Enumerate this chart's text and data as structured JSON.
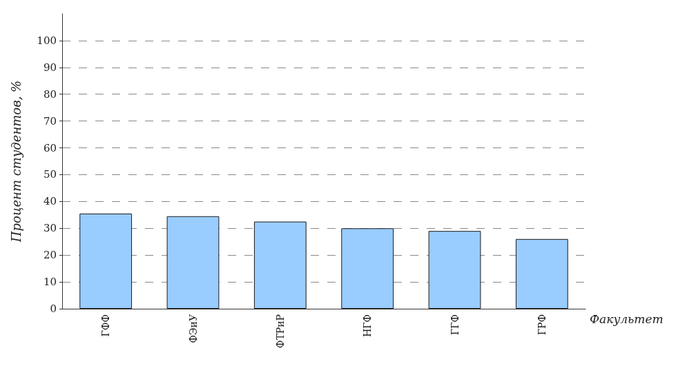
{
  "chart_data": {
    "type": "bar",
    "xlabel": "Факультет",
    "ylabel": "Процент студентов, %",
    "categories": [
      "ГФФ",
      "ФЭиУ",
      "ФТРиР",
      "НГФ",
      "ГГФ",
      "ГРФ"
    ],
    "values": [
      35.5,
      34.5,
      32.5,
      30,
      29,
      26
    ],
    "color": "#99ccff",
    "ylim": [
      0,
      110
    ],
    "yticks": [
      0,
      10,
      20,
      30,
      40,
      50,
      60,
      70,
      80,
      90,
      100
    ],
    "grid": "y",
    "line_style": "dashed"
  }
}
